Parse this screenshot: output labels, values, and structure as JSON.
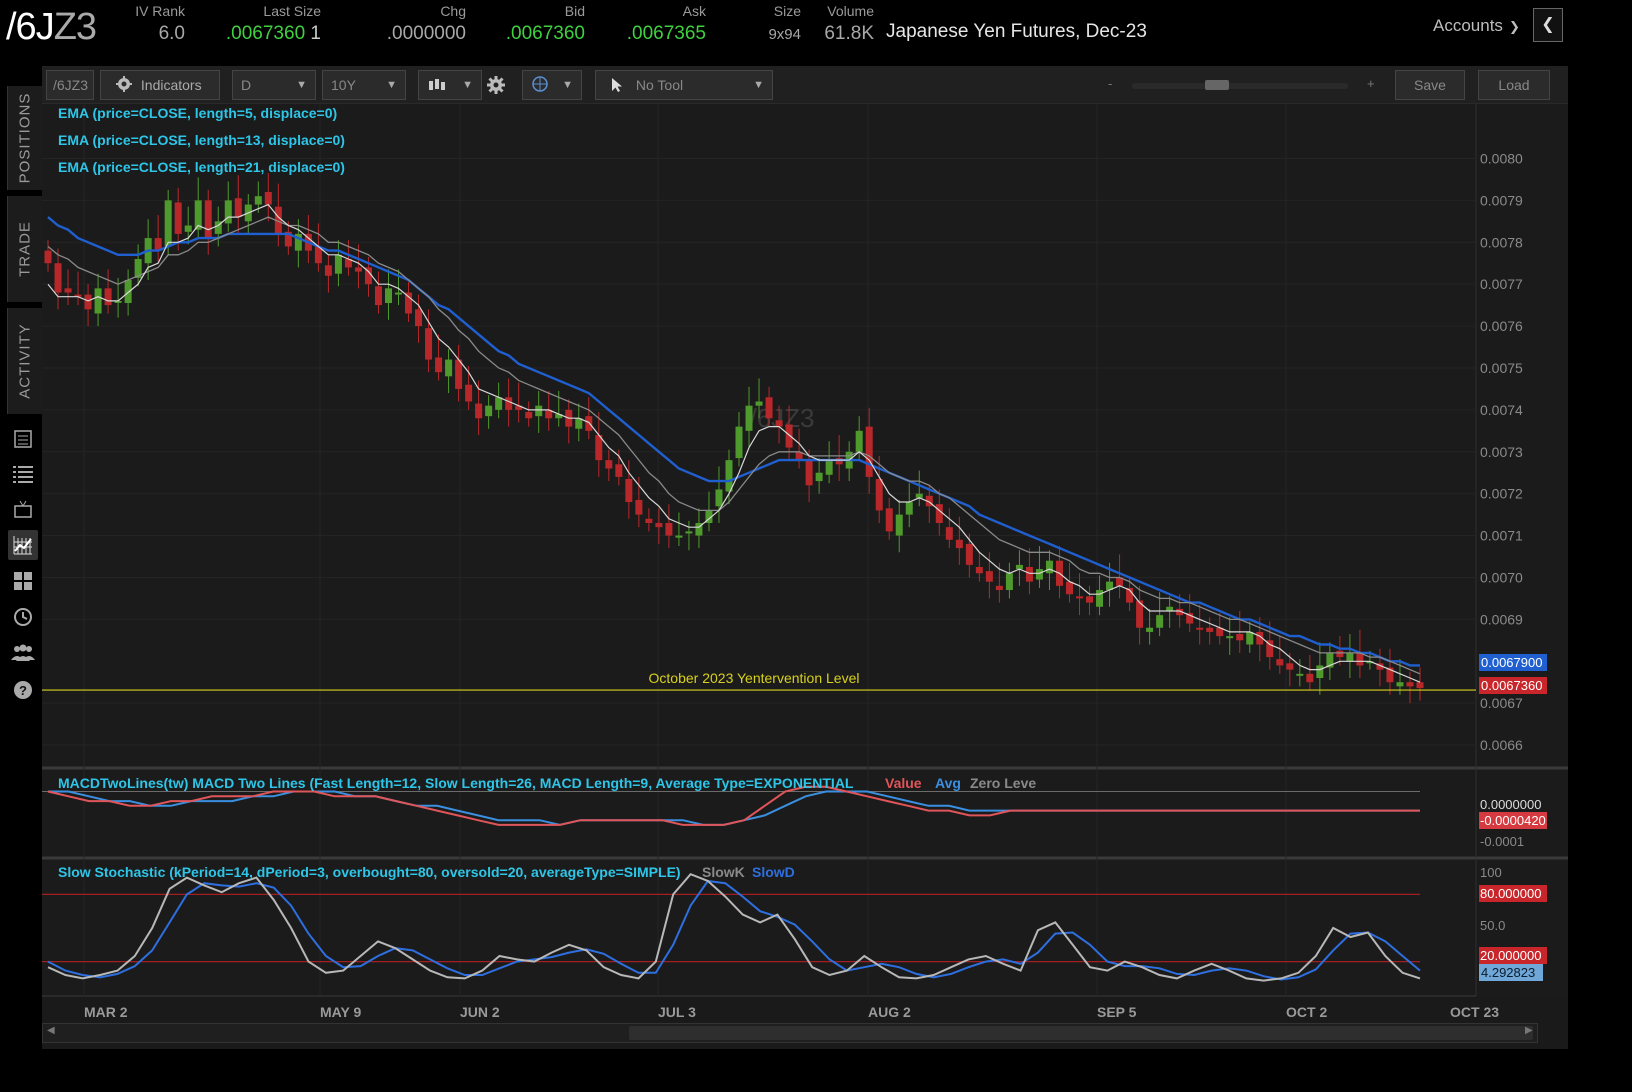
{
  "quote": {
    "symbol_main": "/6J",
    "symbol_suffix": "Z3",
    "fields": [
      {
        "label": "IV Rank",
        "value": "6.0",
        "color": "grey"
      },
      {
        "label": "Last Size",
        "value": ".0067360",
        "extra": "1",
        "color": "green"
      },
      {
        "label": "Chg",
        "value": ".0000000",
        "color": "grey"
      },
      {
        "label": "Bid",
        "value": ".0067360",
        "color": "green"
      },
      {
        "label": "Ask",
        "value": ".0067365",
        "color": "green"
      },
      {
        "label": "Size",
        "value": "9x94",
        "color": "grey"
      },
      {
        "label": "Volume",
        "value": "61.8K",
        "color": "grey"
      }
    ],
    "description": "Japanese Yen Futures, Dec-23",
    "accounts_label": "Accounts"
  },
  "sidebar": {
    "tabs": [
      "POSITIONS",
      "TRADE",
      "ACTIVITY"
    ],
    "icons": [
      "calculator-icon",
      "list-icon",
      "tv-icon",
      "chart-grid-icon",
      "layout-icon",
      "history-icon",
      "people-icon",
      "help-icon"
    ]
  },
  "toolbar": {
    "symbol_box": "/6JZ3",
    "indicators_label": "Indicators",
    "aggregation": "D",
    "time_frame": "10Y",
    "tool_label": "No Tool",
    "zoom_minus": "-",
    "zoom_plus": "+",
    "save_label": "Save",
    "load_label": "Load"
  },
  "colors": {
    "up": "#4f9a2c",
    "down": "#b8282a",
    "ema_fast": "#d8d8d8",
    "ema_mid": "#8a8a8a",
    "ema_slow": "#1f5fd0",
    "study_text": "#2ec6e8",
    "level_line": "#d7d01c",
    "macd_value": "#e0555a",
    "macd_avg": "#3b8fe0",
    "stoch_k": "#b8b8b8",
    "stoch_d": "#2e6fe0"
  },
  "chart_data": {
    "type": "candlestick",
    "watermark": "/6JZ3",
    "studies": [
      "EMA (price=CLOSE, length=5, displace=0)",
      "EMA (price=CLOSE, length=13, displace=0)",
      "EMA (price=CLOSE, length=21, displace=0)"
    ],
    "price_axis": {
      "ylim": [
        0.00655,
        0.00813
      ],
      "ticks": [
        "0.0080",
        "0.0079",
        "0.0078",
        "0.0077",
        "0.0076",
        "0.0075",
        "0.0074",
        "0.0073",
        "0.0072",
        "0.0071",
        "0.0070",
        "0.0069",
        "0.0067",
        "0.0066"
      ],
      "badge_blue": "0.0067900",
      "badge_red": "0.0067360"
    },
    "x_labels": [
      "MAR 2",
      "MAY 9",
      "JUN 2",
      "JUL 3",
      "AUG 2",
      "SEP 5",
      "OCT 2",
      "OCT 23"
    ],
    "level_line": {
      "label": "October 2023 Yentervention Level",
      "value": 0.006736
    },
    "closes": [
      0.00775,
      0.00768,
      0.00768,
      0.00767,
      0.00764,
      0.00769,
      0.00765,
      0.00766,
      0.00771,
      0.00776,
      0.00781,
      0.00778,
      0.0079,
      0.00782,
      0.00784,
      0.0079,
      0.00781,
      0.00785,
      0.0079,
      0.00786,
      0.00789,
      0.00791,
      0.00789,
      0.00782,
      0.00779,
      0.00782,
      0.00778,
      0.00775,
      0.00772,
      0.00777,
      0.00774,
      0.00773,
      0.0077,
      0.00765,
      0.00769,
      0.00768,
      0.00763,
      0.0076,
      0.00752,
      0.00749,
      0.00752,
      0.00745,
      0.00742,
      0.00738,
      0.00741,
      0.00743,
      0.0074,
      0.0074,
      0.00738,
      0.00741,
      0.00738,
      0.00739,
      0.00736,
      0.00738,
      0.00735,
      0.00728,
      0.00726,
      0.00724,
      0.00718,
      0.00715,
      0.00713,
      0.00712,
      0.0071,
      0.0071,
      0.00711,
      0.00713,
      0.00716,
      0.00721,
      0.00728,
      0.00736,
      0.00741,
      0.00742,
      0.00738,
      0.00736,
      0.00731,
      0.00728,
      0.00722,
      0.00725,
      0.00728,
      0.00727,
      0.0073,
      0.00735,
      0.00724,
      0.00716,
      0.00711,
      0.00715,
      0.00718,
      0.0072,
      0.00717,
      0.00713,
      0.00709,
      0.00707,
      0.00703,
      0.00701,
      0.00699,
      0.00697,
      0.00701,
      0.00703,
      0.00699,
      0.00702,
      0.00704,
      0.00698,
      0.00696,
      0.00695,
      0.00694,
      0.00697,
      0.00699,
      0.00698,
      0.00694,
      0.00688,
      0.00688,
      0.00691,
      0.00693,
      0.00691,
      0.00689,
      0.00688,
      0.00687,
      0.00686,
      0.00686,
      0.00685,
      0.00687,
      0.00684,
      0.00681,
      0.00679,
      0.00678,
      0.00677,
      0.00675,
      0.00679,
      0.00682,
      0.00681,
      0.00682,
      0.00679,
      0.0068,
      0.00678,
      0.00675,
      0.00675,
      0.00674,
      0.006736
    ],
    "ema5": [
      0.0077,
      0.00767,
      0.00767,
      0.00767,
      0.00766,
      0.00767,
      0.00766,
      0.00766,
      0.00768,
      0.0077,
      0.00774,
      0.00775,
      0.0078,
      0.0078,
      0.00781,
      0.00784,
      0.00783,
      0.00784,
      0.00786,
      0.00786,
      0.00787,
      0.00788,
      0.00789,
      0.00786,
      0.00784,
      0.00783,
      0.00781,
      0.00779,
      0.00777,
      0.00777,
      0.00776,
      0.00775,
      0.00773,
      0.0077,
      0.0077,
      0.00769,
      0.00767,
      0.00765,
      0.00761,
      0.00757,
      0.00755,
      0.00752,
      0.00749,
      0.00745,
      0.00744,
      0.00743,
      0.00742,
      0.00741,
      0.0074,
      0.0074,
      0.0074,
      0.00739,
      0.00738,
      0.00738,
      0.00737,
      0.00734,
      0.00731,
      0.00729,
      0.00725,
      0.00722,
      0.00719,
      0.00717,
      0.00714,
      0.00713,
      0.00712,
      0.00712,
      0.00714,
      0.00716,
      0.0072,
      0.00725,
      0.00731,
      0.00735,
      0.00736,
      0.00736,
      0.00734,
      0.00732,
      0.00729,
      0.00728,
      0.00728,
      0.00728,
      0.00728,
      0.0073,
      0.00728,
      0.00724,
      0.0072,
      0.00718,
      0.00718,
      0.00719,
      0.00718,
      0.00716,
      0.00714,
      0.00712,
      0.00709,
      0.00706,
      0.00704,
      0.00702,
      0.00701,
      0.00702,
      0.00701,
      0.00701,
      0.00702,
      0.00701,
      0.00699,
      0.00698,
      0.00696,
      0.00696,
      0.00697,
      0.00698,
      0.00697,
      0.00694,
      0.00692,
      0.00692,
      0.00692,
      0.00692,
      0.00691,
      0.0069,
      0.00689,
      0.00688,
      0.00687,
      0.00687,
      0.00687,
      0.00686,
      0.00684,
      0.00683,
      0.00681,
      0.00679,
      0.00678,
      0.00678,
      0.00679,
      0.0068,
      0.0068,
      0.0068,
      0.0068,
      0.00679,
      0.00678,
      0.00677,
      0.00676,
      0.00675
    ],
    "ema13": [
      0.00779,
      0.00777,
      0.00776,
      0.00774,
      0.00773,
      0.00772,
      0.00771,
      0.0077,
      0.00771,
      0.00772,
      0.00773,
      0.00774,
      0.00777,
      0.00777,
      0.00778,
      0.0078,
      0.0078,
      0.00781,
      0.00782,
      0.00783,
      0.00784,
      0.00785,
      0.00786,
      0.00785,
      0.00784,
      0.00784,
      0.00783,
      0.00782,
      0.0078,
      0.0078,
      0.00779,
      0.00778,
      0.00777,
      0.00775,
      0.00774,
      0.00773,
      0.00771,
      0.00769,
      0.00767,
      0.00764,
      0.00762,
      0.00759,
      0.00757,
      0.00754,
      0.00752,
      0.0075,
      0.00749,
      0.00747,
      0.00746,
      0.00745,
      0.00744,
      0.00743,
      0.00742,
      0.00741,
      0.0074,
      0.00738,
      0.00736,
      0.00734,
      0.00731,
      0.00728,
      0.00725,
      0.00723,
      0.0072,
      0.00718,
      0.00717,
      0.00716,
      0.00716,
      0.00716,
      0.00718,
      0.00721,
      0.00724,
      0.00727,
      0.00729,
      0.0073,
      0.0073,
      0.0073,
      0.00729,
      0.00729,
      0.00729,
      0.00729,
      0.00729,
      0.0073,
      0.00729,
      0.00727,
      0.00725,
      0.00724,
      0.00723,
      0.00723,
      0.00722,
      0.0072,
      0.00719,
      0.00717,
      0.00715,
      0.00713,
      0.00711,
      0.00709,
      0.00708,
      0.00707,
      0.00706,
      0.00706,
      0.00706,
      0.00705,
      0.00704,
      0.00702,
      0.00701,
      0.00701,
      0.007,
      0.007,
      0.00699,
      0.00697,
      0.00696,
      0.00695,
      0.00695,
      0.00694,
      0.00694,
      0.00693,
      0.00692,
      0.00691,
      0.0069,
      0.0069,
      0.00689,
      0.00688,
      0.00687,
      0.00686,
      0.00685,
      0.00684,
      0.00683,
      0.00682,
      0.00682,
      0.00682,
      0.00682,
      0.00682,
      0.00681,
      0.00681,
      0.0068,
      0.00679,
      0.00678,
      0.00677
    ],
    "ema21": [
      0.00786,
      0.00784,
      0.00783,
      0.00781,
      0.0078,
      0.00779,
      0.00778,
      0.00777,
      0.00777,
      0.00777,
      0.00778,
      0.00778,
      0.00779,
      0.0078,
      0.0078,
      0.00781,
      0.00781,
      0.00781,
      0.00782,
      0.00782,
      0.00782,
      0.00782,
      0.00782,
      0.00782,
      0.00782,
      0.00781,
      0.0078,
      0.00779,
      0.00778,
      0.00778,
      0.00777,
      0.00776,
      0.00775,
      0.00774,
      0.00773,
      0.00772,
      0.00771,
      0.00769,
      0.00767,
      0.00765,
      0.00764,
      0.00762,
      0.0076,
      0.00758,
      0.00756,
      0.00754,
      0.00753,
      0.00751,
      0.0075,
      0.00749,
      0.00748,
      0.00747,
      0.00746,
      0.00745,
      0.00744,
      0.00742,
      0.0074,
      0.00738,
      0.00736,
      0.00734,
      0.00732,
      0.0073,
      0.00728,
      0.00726,
      0.00725,
      0.00724,
      0.00723,
      0.00723,
      0.00723,
      0.00724,
      0.00725,
      0.00726,
      0.00727,
      0.00728,
      0.00728,
      0.00728,
      0.00728,
      0.00728,
      0.00728,
      0.00728,
      0.00728,
      0.00728,
      0.00727,
      0.00726,
      0.00725,
      0.00724,
      0.00723,
      0.00722,
      0.00721,
      0.0072,
      0.00719,
      0.00718,
      0.00717,
      0.00715,
      0.00714,
      0.00713,
      0.00712,
      0.00711,
      0.0071,
      0.00709,
      0.00708,
      0.00707,
      0.00706,
      0.00705,
      0.00704,
      0.00703,
      0.00702,
      0.00701,
      0.007,
      0.00699,
      0.00698,
      0.00697,
      0.00696,
      0.00695,
      0.00694,
      0.00694,
      0.00693,
      0.00692,
      0.00691,
      0.0069,
      0.0069,
      0.00689,
      0.00688,
      0.00687,
      0.00686,
      0.00686,
      0.00685,
      0.00684,
      0.00684,
      0.00683,
      0.00683,
      0.00682,
      0.00682,
      0.00681,
      0.0068,
      0.0068,
      0.00679,
      0.00679
    ],
    "macd": {
      "title": "MACDTwoLines(tw) MACD Two Lines (Fast Length=12, Slow Length=26, MACD Length=9, Average Type=EXPONENTIAL",
      "legend": [
        "Value",
        "Avg",
        "Zero Leve"
      ],
      "ylim": [
        -0.00011,
        2e-05
      ],
      "ticks": [
        "-0.0001"
      ],
      "badge_zero": "0.0000000",
      "badge_value": "-0.0000420",
      "value": [
        0.0,
        -1e-05,
        -2e-05,
        -2e-05,
        -3e-05,
        -3e-05,
        -2e-05,
        -2e-05,
        -1e-05,
        -1e-05,
        -1e-05,
        0.0,
        0.0,
        0.0,
        -1e-05,
        -1e-05,
        -1e-05,
        -2e-05,
        -3e-05,
        -4e-05,
        -5e-05,
        -6e-05,
        -7e-05,
        -7e-05,
        -7e-05,
        -7e-05,
        -6e-05,
        -6e-05,
        -6e-05,
        -6e-05,
        -6e-05,
        -7e-05,
        -7e-05,
        -7e-05,
        -6e-05,
        -3e-05,
        0.0,
        1e-05,
        1e-05,
        0.0,
        -1e-05,
        -2e-05,
        -3e-05,
        -4e-05,
        -4e-05,
        -5e-05,
        -5e-05,
        -4e-05,
        -4e-05,
        -4e-05,
        -4e-05,
        -4e-05,
        -4e-05,
        -4e-05,
        -4e-05,
        -4e-05,
        -4e-05,
        -4e-05,
        -4e-05,
        -4e-05,
        -4e-05,
        -4e-05,
        -4e-05,
        -4e-05,
        -4e-05,
        -4e-05,
        -4e-05,
        -4e-05
      ],
      "avg": [
        0.0,
        0.0,
        -1e-05,
        -2e-05,
        -2e-05,
        -3e-05,
        -3e-05,
        -2e-05,
        -2e-05,
        -2e-05,
        -1e-05,
        -1e-05,
        0.0,
        0.0,
        0.0,
        -1e-05,
        -1e-05,
        -2e-05,
        -3e-05,
        -3e-05,
        -4e-05,
        -5e-05,
        -6e-05,
        -6e-05,
        -6e-05,
        -7e-05,
        -6e-05,
        -6e-05,
        -6e-05,
        -6e-05,
        -6e-05,
        -6e-05,
        -7e-05,
        -7e-05,
        -6e-05,
        -5e-05,
        -3e-05,
        -1e-05,
        0.0,
        0.0,
        0.0,
        -1e-05,
        -2e-05,
        -3e-05,
        -3e-05,
        -4e-05,
        -4e-05,
        -4e-05,
        -4e-05,
        -4e-05,
        -4e-05,
        -4e-05,
        -4e-05,
        -4e-05,
        -4e-05,
        -4e-05,
        -4e-05,
        -4e-05,
        -4e-05,
        -4e-05,
        -4e-05,
        -4e-05,
        -4e-05,
        -4e-05,
        -4e-05,
        -4e-05,
        -4e-05,
        -4e-05
      ]
    },
    "stochastic": {
      "title": "Slow Stochastic (kPeriod=14, dPeriod=3, overbought=80, oversold=20, averageType=SIMPLE)",
      "legend": [
        "SlowK",
        "SlowD"
      ],
      "ylim": [
        0,
        100
      ],
      "ticks": [
        "100",
        "50.0"
      ],
      "overbought": 80,
      "oversold": 20,
      "badge_overbought": "80.000000",
      "badge_oversold": "20.000000",
      "badge_value": "4.292823",
      "k": [
        15,
        8,
        5,
        8,
        12,
        25,
        50,
        85,
        95,
        88,
        82,
        90,
        95,
        75,
        50,
        20,
        10,
        12,
        25,
        38,
        32,
        22,
        12,
        6,
        5,
        12,
        25,
        22,
        20,
        28,
        35,
        30,
        15,
        8,
        5,
        20,
        80,
        98,
        92,
        78,
        62,
        55,
        62,
        40,
        15,
        8,
        12,
        25,
        15,
        6,
        5,
        8,
        15,
        22,
        25,
        18,
        12,
        48,
        55,
        35,
        15,
        12,
        20,
        15,
        8,
        5,
        12,
        18,
        12,
        5,
        3,
        5,
        10,
        25,
        50,
        42,
        46,
        25,
        10,
        5
      ],
      "d": [
        20,
        12,
        8,
        6,
        9,
        16,
        30,
        55,
        80,
        90,
        88,
        87,
        90,
        86,
        70,
        45,
        25,
        15,
        16,
        25,
        32,
        30,
        22,
        14,
        8,
        8,
        14,
        20,
        22,
        24,
        28,
        31,
        27,
        18,
        10,
        10,
        35,
        70,
        92,
        90,
        78,
        65,
        60,
        53,
        38,
        22,
        12,
        15,
        18,
        15,
        9,
        6,
        9,
        15,
        20,
        22,
        18,
        28,
        45,
        46,
        35,
        20,
        16,
        16,
        14,
        9,
        8,
        12,
        14,
        12,
        7,
        4,
        6,
        13,
        30,
        45,
        46,
        38,
        25,
        12
      ]
    }
  }
}
